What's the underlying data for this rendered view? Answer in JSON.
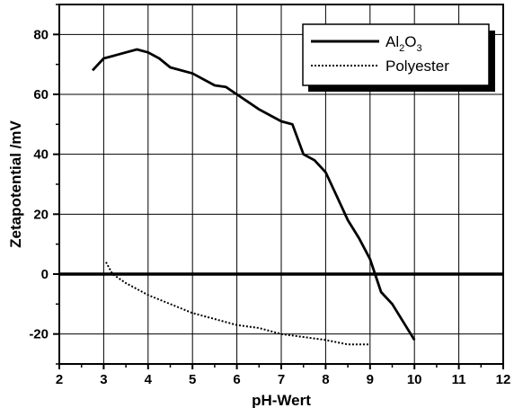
{
  "chart_data": {
    "type": "line",
    "xlabel": "pH-Wert",
    "ylabel": "Zetapotential /mV",
    "xlim": [
      2,
      12
    ],
    "ylim": [
      -30,
      90
    ],
    "x_ticks": [
      2,
      3,
      4,
      5,
      6,
      7,
      8,
      9,
      10,
      11,
      12
    ],
    "y_ticks": [
      -20,
      0,
      20,
      40,
      60,
      80
    ],
    "grid": true,
    "legend_position": "top-right",
    "series": [
      {
        "name": "Al2O3",
        "label_parts": [
          "Al",
          "2",
          "O",
          "3"
        ],
        "style": "solid",
        "color": "#000000",
        "x": [
          2.75,
          3.0,
          3.25,
          3.5,
          3.75,
          4.0,
          4.25,
          4.5,
          5.0,
          5.5,
          5.75,
          6.0,
          6.5,
          7.0,
          7.25,
          7.5,
          7.75,
          8.0,
          8.25,
          8.5,
          8.75,
          9.0,
          9.25,
          9.5,
          10.0
        ],
        "y": [
          68,
          72,
          73,
          74,
          75,
          74,
          72,
          69,
          67,
          63,
          62.5,
          60,
          55,
          51,
          50,
          40,
          38,
          34,
          26,
          18,
          12,
          5,
          -6,
          -10,
          -22
        ]
      },
      {
        "name": "Polyester",
        "style": "dotted",
        "color": "#000000",
        "x": [
          3.05,
          3.2,
          3.5,
          4.0,
          4.5,
          5.0,
          5.5,
          6.0,
          6.5,
          7.0,
          7.5,
          8.0,
          8.5,
          9.0
        ],
        "y": [
          4,
          0,
          -3,
          -7,
          -10,
          -13,
          -15,
          -17,
          -18,
          -20,
          -21,
          -22,
          -23.5,
          -23.5
        ]
      }
    ],
    "reference_line": {
      "y": 0,
      "x_range": [
        2,
        12
      ]
    }
  }
}
